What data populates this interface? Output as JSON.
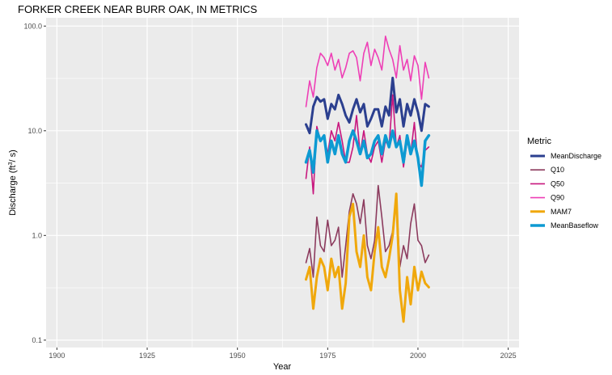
{
  "chart_data": {
    "type": "line",
    "title": "FORKER CREEK NEAR BURR OAK, IN  METRICS",
    "xlabel": "Year",
    "ylabel_main": "Discharge (ft",
    "ylabel_sup": "3",
    "ylabel_tail": "/ s)",
    "y_scale": "log10",
    "xlim": [
      1897,
      2028
    ],
    "ylim": [
      0.085,
      120
    ],
    "x_ticks": [
      1900,
      1925,
      1950,
      1975,
      2000,
      2025
    ],
    "x_tick_labels": [
      "1900",
      "1925",
      "1950",
      "1975",
      "2000",
      "2025"
    ],
    "y_ticks": [
      0.1,
      1,
      10,
      100
    ],
    "y_tick_labels": [
      "0.1",
      "1.0",
      "10.0",
      "100.0"
    ],
    "grid": true,
    "legend_title": "Metric",
    "legend_position": "right",
    "x": [
      1969,
      1970,
      1971,
      1972,
      1973,
      1974,
      1975,
      1976,
      1977,
      1978,
      1979,
      1980,
      1981,
      1982,
      1983,
      1984,
      1985,
      1986,
      1987,
      1988,
      1989,
      1990,
      1991,
      1992,
      1993,
      1994,
      1995,
      1996,
      1997,
      1998,
      1999,
      2000,
      2001,
      2002,
      2003
    ],
    "series": [
      {
        "name": "MeanDischarge",
        "color": "#2b3f8f",
        "width": 3,
        "values": [
          11.5,
          9.5,
          17,
          21,
          19,
          20,
          13,
          18,
          16,
          22,
          18,
          14,
          12,
          16,
          20,
          15,
          18,
          11,
          13,
          16,
          16,
          11,
          17,
          14,
          32,
          15,
          20,
          11,
          18,
          14,
          20,
          15,
          10,
          18,
          17
        ]
      },
      {
        "name": "Q10",
        "color": "#8c3b5e",
        "width": 1.6,
        "values": [
          0.55,
          0.75,
          0.4,
          1.5,
          0.8,
          0.7,
          1.4,
          0.8,
          0.9,
          1.2,
          0.4,
          0.8,
          1.7,
          2.5,
          2.0,
          1.3,
          2.2,
          0.8,
          0.6,
          0.9,
          3.0,
          1.5,
          0.7,
          0.8,
          1.1,
          2.5,
          0.5,
          0.8,
          0.6,
          1.3,
          2.0,
          0.9,
          0.8,
          0.55,
          0.65
        ]
      },
      {
        "name": "Q50",
        "color": "#c8177e",
        "width": 1.6,
        "values": [
          3.5,
          7,
          2.5,
          11,
          8,
          9,
          6,
          10,
          8,
          12,
          8,
          5,
          5,
          7,
          14,
          6,
          10,
          6,
          5,
          7,
          8,
          5,
          8,
          7,
          22,
          7,
          9,
          4.5,
          8,
          6,
          12,
          5,
          4.5,
          6.5,
          7
        ]
      },
      {
        "name": "Q90",
        "color": "#ee3fb6",
        "width": 1.6,
        "values": [
          17,
          30,
          21,
          40,
          55,
          50,
          42,
          55,
          38,
          48,
          32,
          40,
          55,
          58,
          50,
          30,
          55,
          70,
          42,
          60,
          50,
          38,
          80,
          60,
          48,
          32,
          65,
          38,
          48,
          30,
          52,
          42,
          20,
          45,
          32
        ]
      },
      {
        "name": "MAM7",
        "color": "#f0a80c",
        "width": 3,
        "values": [
          0.38,
          0.5,
          0.2,
          0.4,
          0.6,
          0.5,
          0.3,
          0.6,
          0.4,
          0.5,
          0.2,
          0.35,
          1.5,
          2.0,
          0.7,
          0.5,
          1.0,
          0.4,
          0.3,
          0.7,
          1.2,
          0.5,
          0.4,
          0.6,
          1.0,
          2.5,
          0.3,
          0.15,
          0.4,
          0.22,
          0.5,
          0.3,
          0.45,
          0.35,
          0.32
        ]
      },
      {
        "name": "MeanBaseflow",
        "color": "#0d9ad2",
        "width": 3.5,
        "values": [
          5,
          6.5,
          4,
          10,
          8,
          9,
          5,
          8,
          6,
          9,
          6,
          5,
          8,
          10,
          8,
          6,
          8,
          5.5,
          6,
          8,
          9,
          6,
          9,
          7,
          10,
          7,
          8,
          5,
          9,
          6,
          8,
          5.5,
          3,
          8,
          9
        ]
      }
    ]
  }
}
